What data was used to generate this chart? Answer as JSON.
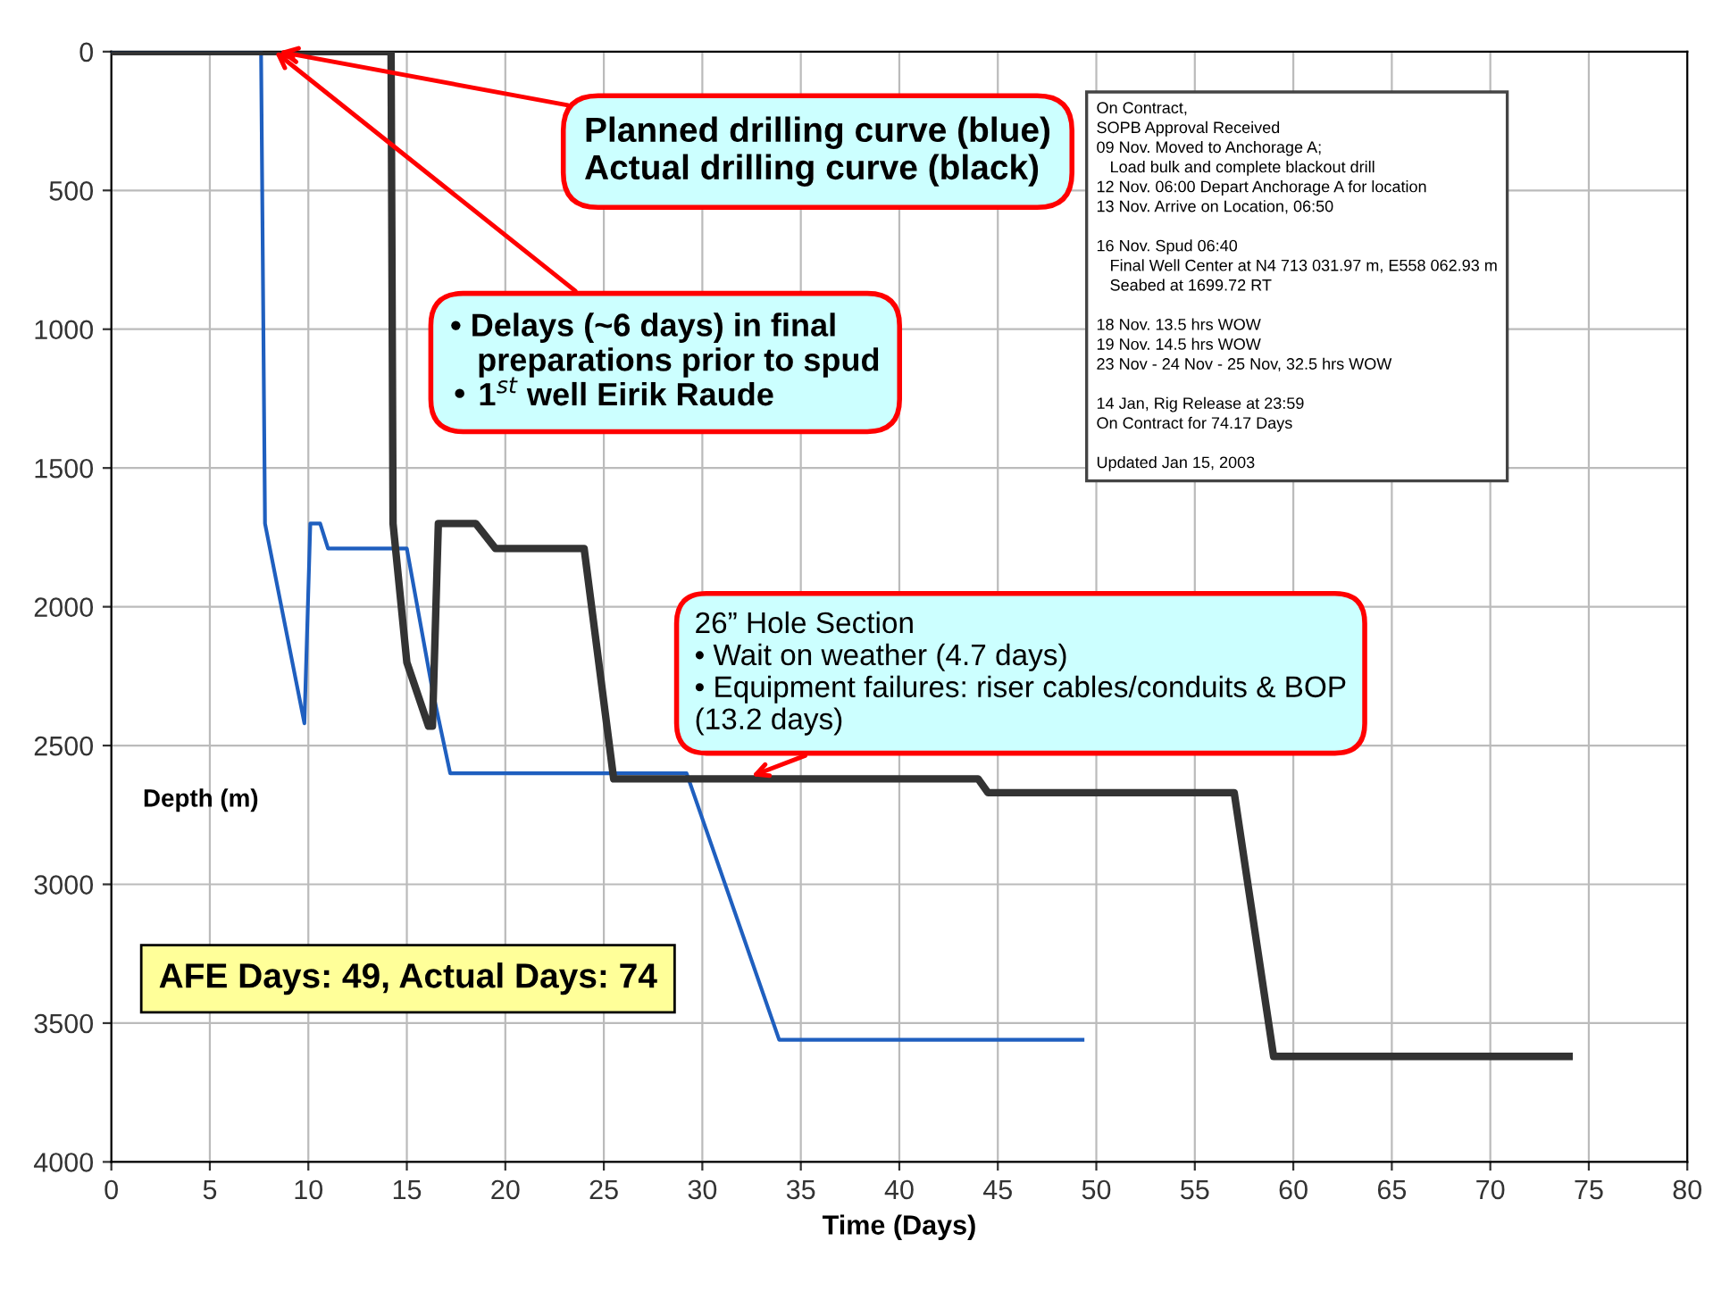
{
  "chart_data": {
    "type": "line",
    "xlabel": "Time (Days)",
    "ylabel": "Depth (m)",
    "xlim": [
      0,
      80
    ],
    "xticks": [
      0,
      5,
      10,
      15,
      20,
      25,
      30,
      35,
      40,
      45,
      50,
      55,
      60,
      65,
      70,
      75,
      80
    ],
    "ylim": [
      4000,
      0
    ],
    "yticks": [
      0,
      500,
      1000,
      1500,
      2000,
      2500,
      3000,
      3500,
      4000
    ],
    "grid": true,
    "line_style": "solid",
    "series": [
      {
        "color": "#1f5fbf",
        "x": [
          0,
          7.6,
          7.8,
          9.8,
          10.1,
          10.6,
          11,
          15,
          16.3,
          17.2,
          29.2,
          33.9,
          49.3
        ],
        "values": [
          0,
          0,
          1700,
          2420,
          1700,
          1700,
          1790,
          1790,
          2300,
          2600,
          2600,
          3560,
          3560
        ]
      },
      {
        "color": "#333333",
        "x": [
          0,
          14.2,
          14.3,
          15,
          16.1,
          16.3,
          16.6,
          18.5,
          19.5,
          24,
          25.5,
          44,
          44.5,
          57,
          59,
          74
        ],
        "values": [
          0,
          0,
          1700,
          2200,
          2430,
          2430,
          1700,
          1700,
          1790,
          1790,
          2620,
          2620,
          2670,
          2670,
          3620,
          3620
        ]
      }
    ],
    "annotations": [
      {
        "text": "Planned drilling curve (blue)\nActual drilling curve (black)",
        "x": 8.5,
        "y": 0
      },
      {
        "text": "• Delays (~6 days) in final\n   preparations prior to spud\n• 1$^{st}$ well Eirik Raude",
        "x": 8.3,
        "y": 0
      },
      {
        "text": "26” Hole Section\n• Wait on weather (4.7 days)\n• Equipment failures: riser cables/conduits & BOP\n(13.2 days)",
        "x": 32.5,
        "y": 2610
      },
      "AFE Days: 49, Actual Days: 74",
      "On Contract,\nSOPB Approval Received\n09 Nov. Moved to Anchorage A;\n   Load bulk and complete blackout drill\n12 Nov. 06:00 Depart Anchorage A for location\n13 Nov. Arrive on Location, 06:50\n\n16 Nov. Spud 06:40\n   Final Well Center at N4 713 031.97 m, E558 062.93 m\n   Seabed at 1699.72 RT\n\n18 Nov. 13.5 hrs WOW\n19 Nov. 14.5 hrs WOW\n23 Nov - 24 Nov - 25 Nov, 32.5 hrs WOW\n\n14 Jan, Rig Release at 23:59\nOn Contract for 74.17 Days\n\nUpdated Jan 15, 2003"
    ]
  }
}
